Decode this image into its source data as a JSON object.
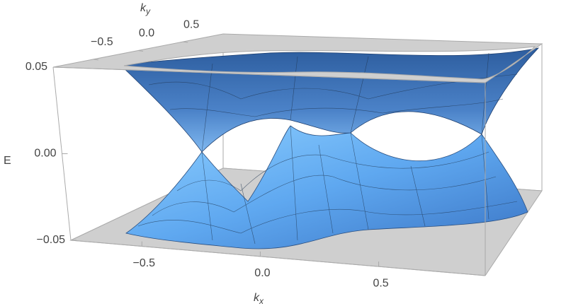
{
  "chart_data": {
    "type": "surface3d",
    "xlabel": {
      "base": "k",
      "sub": "x"
    },
    "ylabel": {
      "base": "k",
      "sub": "y"
    },
    "zlabel": "E",
    "xlim": [
      -0.8,
      0.95
    ],
    "xticks": [
      {
        "value": -0.5,
        "label": "−0.5"
      },
      {
        "value": 0,
        "label": "0.0"
      },
      0.5
    ],
    "ylim": [
      -0.95,
      0.95
    ],
    "yticks": [
      {
        "value": -0.5,
        "label": "−0.5"
      },
      {
        "value": 0,
        "label": "0.0"
      },
      0.5
    ],
    "zlim": [
      -0.05,
      0.05
    ],
    "zticks": [
      {
        "value": -0.05,
        "label": "−0.05"
      },
      {
        "value": 0,
        "label": "0.00"
      },
      0.05
    ],
    "color": "#5fa8f0",
    "grid": false
  }
}
